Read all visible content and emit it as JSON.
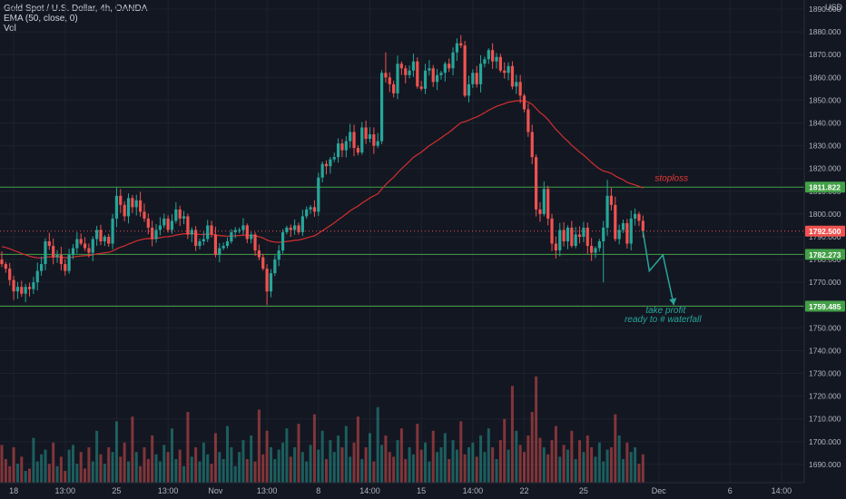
{
  "chart_data": {
    "type": "candlestick",
    "header": {
      "symbol": "Gold Spot / U.S. Dollar, 4h, OANDA",
      "indicator": "EMA (50, close, 0)",
      "volume_label": "Vol"
    },
    "currency": "USD",
    "y_axis": {
      "ylim": [
        1682,
        1894
      ],
      "ticks": [
        1690,
        1700,
        1710,
        1720,
        1730,
        1740,
        1750,
        1760,
        1770,
        1780,
        1790,
        1800,
        1810,
        1820,
        1830,
        1840,
        1850,
        1860,
        1870,
        1880,
        1890
      ]
    },
    "x_axis": {
      "ticks": [
        {
          "label": "18",
          "bar": 3
        },
        {
          "label": "13:00",
          "bar": 16
        },
        {
          "label": "25",
          "bar": 29
        },
        {
          "label": "13:00",
          "bar": 42
        },
        {
          "label": "Nov",
          "bar": 54
        },
        {
          "label": "13:00",
          "bar": 67
        },
        {
          "label": "8",
          "bar": 80
        },
        {
          "label": "14:00",
          "bar": 93
        },
        {
          "label": "15",
          "bar": 106
        },
        {
          "label": "14:00",
          "bar": 119
        },
        {
          "label": "22",
          "bar": 132
        },
        {
          "label": "25",
          "bar": 147
        },
        {
          "label": "Dec",
          "bar": 166
        },
        {
          "label": "6",
          "bar": 184
        },
        {
          "label": "14:00",
          "bar": 197
        }
      ]
    },
    "price_lines": [
      {
        "label": "1811.822",
        "value": 1811.822,
        "color": "#43a047"
      },
      {
        "label": "1782.273",
        "value": 1782.273,
        "color": "#43a047"
      },
      {
        "label": "1759.485",
        "value": 1759.485,
        "color": "#43a047"
      }
    ],
    "last_price": {
      "label": "1792.500",
      "value": 1792.5,
      "color": "#ef5350"
    },
    "annotations": {
      "stoploss": "stoploss",
      "take_profit": "take profit",
      "waterfall": "ready to # waterfall"
    },
    "colors": {
      "up": "#26a69a",
      "down": "#ef5350",
      "ema": "#d32f2f",
      "level": "#43a047",
      "arrow": "#26a69a",
      "stoploss_text": "#e53935"
    },
    "closes": [
      1778,
      1776,
      1771,
      1766,
      1768,
      1765,
      1768,
      1767,
      1770,
      1775,
      1778,
      1788,
      1786,
      1781,
      1782,
      1778,
      1775,
      1782,
      1785,
      1789,
      1787,
      1785,
      1783,
      1789,
      1793,
      1788,
      1790,
      1787,
      1798,
      1808,
      1804,
      1799,
      1807,
      1803,
      1806,
      1801,
      1798,
      1794,
      1789,
      1793,
      1795,
      1798,
      1793,
      1797,
      1802,
      1798,
      1799,
      1791,
      1793,
      1786,
      1788,
      1789,
      1795,
      1791,
      1782,
      1785,
      1786,
      1788,
      1792,
      1793,
      1793,
      1795,
      1789,
      1791,
      1784,
      1781,
      1776,
      1766,
      1774,
      1780,
      1784,
      1792,
      1794,
      1793,
      1795,
      1792,
      1799,
      1802,
      1803,
      1801,
      1816,
      1822,
      1821,
      1824,
      1825,
      1831,
      1828,
      1832,
      1836,
      1829,
      1827,
      1838,
      1833,
      1835,
      1830,
      1832,
      1862,
      1860,
      1857,
      1853,
      1866,
      1864,
      1861,
      1863,
      1867,
      1856,
      1855,
      1863,
      1864,
      1858,
      1861,
      1862,
      1866,
      1864,
      1871,
      1875,
      1874,
      1852,
      1857,
      1862,
      1857,
      1866,
      1868,
      1872,
      1867,
      1869,
      1863,
      1862,
      1865,
      1856,
      1858,
      1852,
      1846,
      1836,
      1825,
      1802,
      1800,
      1811,
      1798,
      1787,
      1784,
      1793,
      1788,
      1794,
      1786,
      1791,
      1790,
      1794,
      1786,
      1783,
      1785,
      1788,
      1794,
      1808,
      1804,
      1789,
      1793,
      1796,
      1787,
      1798,
      1800,
      1797,
      1792.5
    ],
    "volumes": [
      32,
      20,
      14,
      30,
      16,
      22,
      10,
      12,
      38,
      18,
      24,
      28,
      16,
      34,
      14,
      22,
      10,
      28,
      32,
      16,
      26,
      12,
      30,
      18,
      44,
      24,
      16,
      30,
      26,
      52,
      22,
      34,
      18,
      56,
      26,
      14,
      30,
      20,
      40,
      24,
      18,
      32,
      26,
      46,
      20,
      28,
      14,
      60,
      22,
      30,
      18,
      34,
      24,
      16,
      42,
      26,
      20,
      48,
      30,
      14,
      26,
      36,
      20,
      40,
      18,
      62,
      24,
      44,
      30,
      20,
      28,
      34,
      46,
      22,
      30,
      50,
      26,
      18,
      32,
      58,
      28,
      44,
      20,
      36,
      26,
      40,
      30,
      48,
      22,
      34,
      56,
      20,
      30,
      42,
      18,
      64,
      32,
      40,
      26,
      22,
      36,
      46,
      20,
      30,
      24,
      50,
      28,
      34,
      18,
      44,
      26,
      30,
      42,
      20,
      36,
      28,
      52,
      24,
      30,
      34,
      22,
      40,
      26,
      46,
      30,
      20,
      36,
      54,
      28,
      82,
      44,
      32,
      26,
      40,
      60,
      90,
      38,
      30,
      24,
      36,
      48,
      22,
      32,
      28,
      44,
      20,
      36,
      26,
      40,
      30,
      22,
      34,
      18,
      28,
      30,
      58,
      40,
      20,
      34,
      26,
      30,
      16,
      24
    ]
  }
}
